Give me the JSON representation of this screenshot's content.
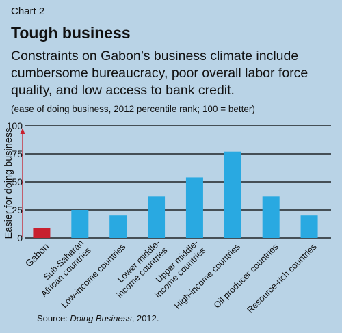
{
  "header": {
    "chart_label": "Chart 2",
    "title": "Tough business",
    "subtitle": "Constraints on Gabon’s business climate include cumbersome bureaucracy, poor overall labor force quality, and low access to bank credit.",
    "note": "(ease of doing business, 2012 percentile rank; 100 = better)"
  },
  "source": {
    "prefix": "Source: ",
    "italic": "Doing Business",
    "suffix": ", 2012."
  },
  "colors": {
    "background": "#b9d3e6",
    "highlight": "#c8202f",
    "bar": "#29a9e1",
    "arrow": "#c8202f"
  },
  "chart_data": {
    "type": "bar",
    "ylabel": "Easier for doing business",
    "ylim": [
      0,
      100
    ],
    "yticks": [
      0,
      25,
      50,
      75,
      100
    ],
    "grid": true,
    "categories": [
      [
        "Gabon"
      ],
      [
        "Sub-Saharan",
        "African countries"
      ],
      [
        "Low-income countries"
      ],
      [
        "Lower middle-",
        "income countries"
      ],
      [
        "Upper middle-",
        "income countries"
      ],
      [
        "High-income countries"
      ],
      [
        "Oil producer countries"
      ],
      [
        "Resource-rich countries"
      ]
    ],
    "values": [
      9,
      25,
      20,
      37,
      54,
      77,
      37,
      20
    ],
    "highlight_index": 0
  }
}
